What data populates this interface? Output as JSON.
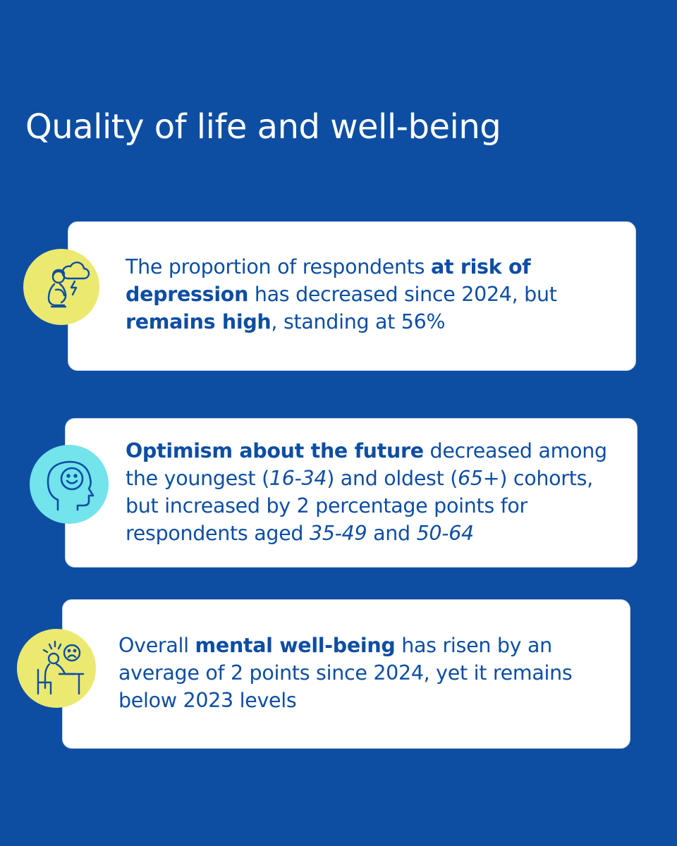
{
  "title": "Quality of life and well-being",
  "colors": {
    "background": "#0d4ea3",
    "text_blue": "#0d4ea3",
    "badge_yellow": "#ece970",
    "badge_cyan": "#73e3ec"
  },
  "cards": [
    {
      "icon": "depressed-person-storm-icon",
      "lines": [
        [
          "The proportion of respondents ",
          "at risk of"
        ],
        [
          "depression",
          " has decreased since 2024, but"
        ],
        [
          "remains high",
          ", standing at 56%"
        ]
      ]
    },
    {
      "icon": "happy-mind-head-icon",
      "lines": [
        [
          "Optimism about the future",
          " decreased among"
        ],
        [
          "the youngest (",
          "16-34",
          ") and oldest (",
          "65+",
          ") cohorts,"
        ],
        [
          "but increased by 2 percentage points for"
        ],
        [
          "respondents aged ",
          "35-49",
          " and ",
          "50-64"
        ]
      ]
    },
    {
      "icon": "stressed-person-desk-icon",
      "lines": [
        [
          "Overall ",
          "mental well-being",
          " has risen by an"
        ],
        [
          "average of 2 points since 2024, yet it remains"
        ],
        [
          "below 2023 levels"
        ]
      ]
    }
  ]
}
